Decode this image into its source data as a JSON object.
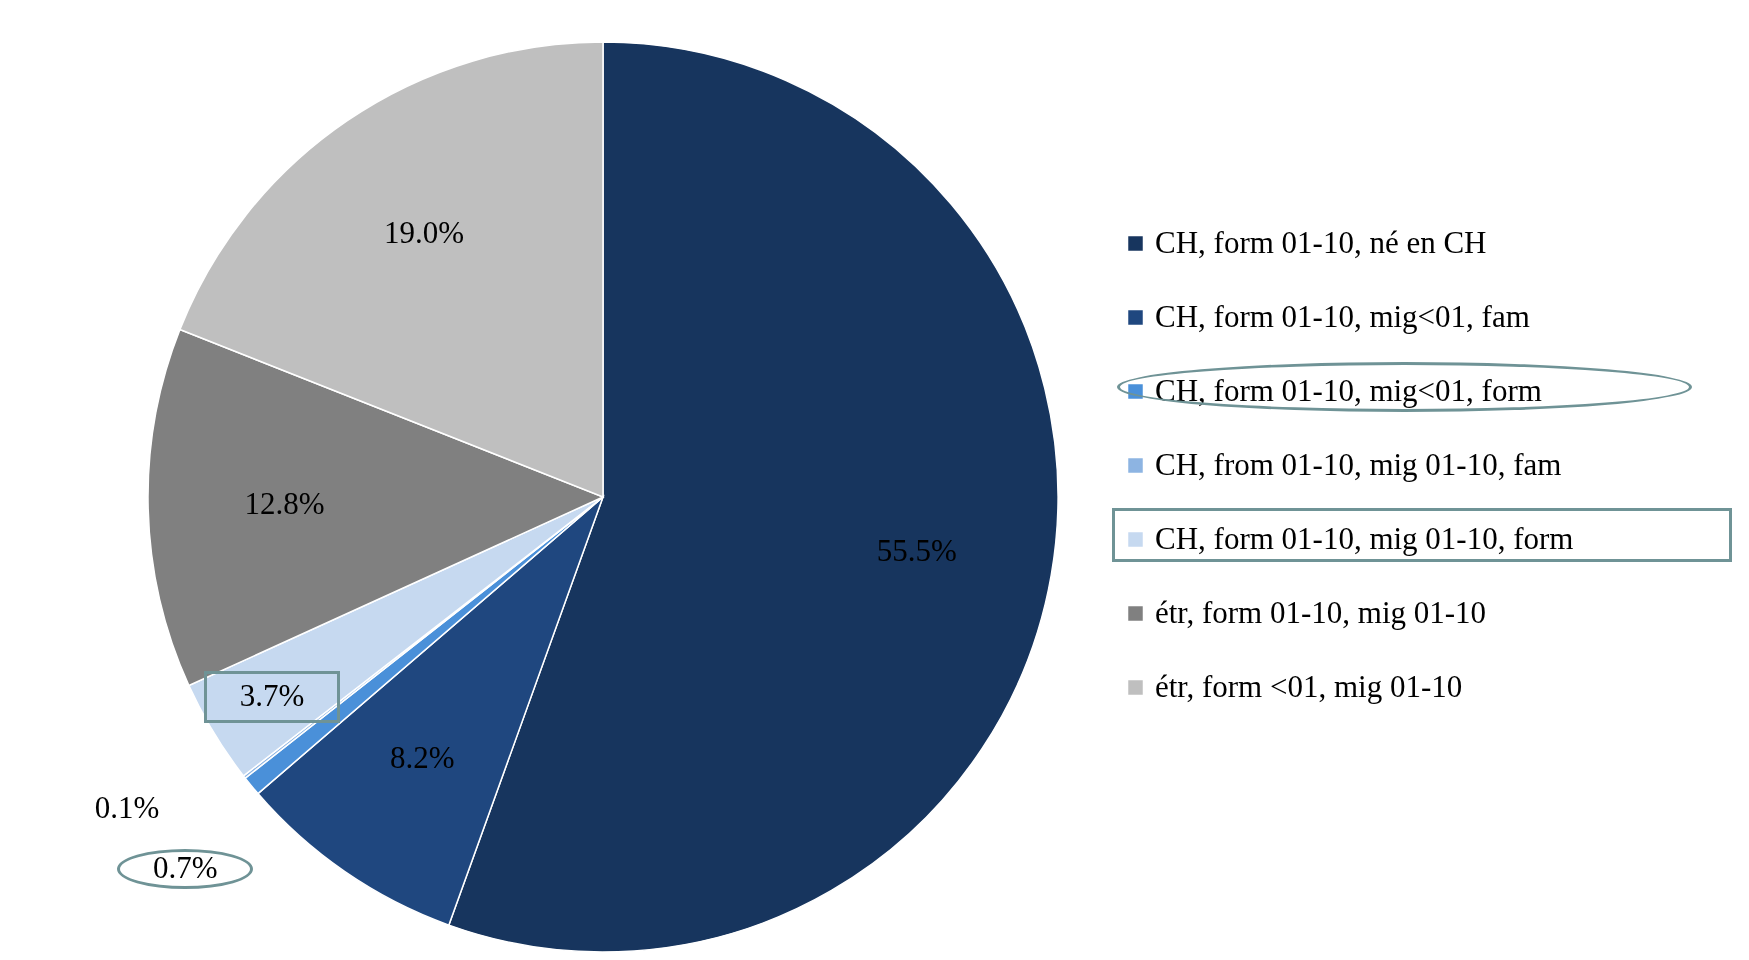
{
  "chart_data": {
    "type": "pie",
    "categories": [
      "CH, form 01-10, né en CH",
      "CH, form 01-10, mig<01, fam",
      "CH, form 01-10, mig<01, form",
      "CH, from 01-10, mig 01-10, fam",
      "CH, form 01-10, mig 01-10, form",
      "étr, form 01-10, mig 01-10",
      "étr, form <01, mig 01-10"
    ],
    "values": [
      55.5,
      8.2,
      0.7,
      0.1,
      3.7,
      12.8,
      19.0
    ],
    "colors": [
      "#17355e",
      "#1f477f",
      "#4a90d9",
      "#8db4e2",
      "#c6d9f0",
      "#808080",
      "#bfbfbf"
    ],
    "value_labels": [
      "55.5%",
      "8.2%",
      "0.7%",
      "0.1%",
      "3.7%",
      "12.8%",
      "19.0%"
    ],
    "legend": "right"
  }
}
